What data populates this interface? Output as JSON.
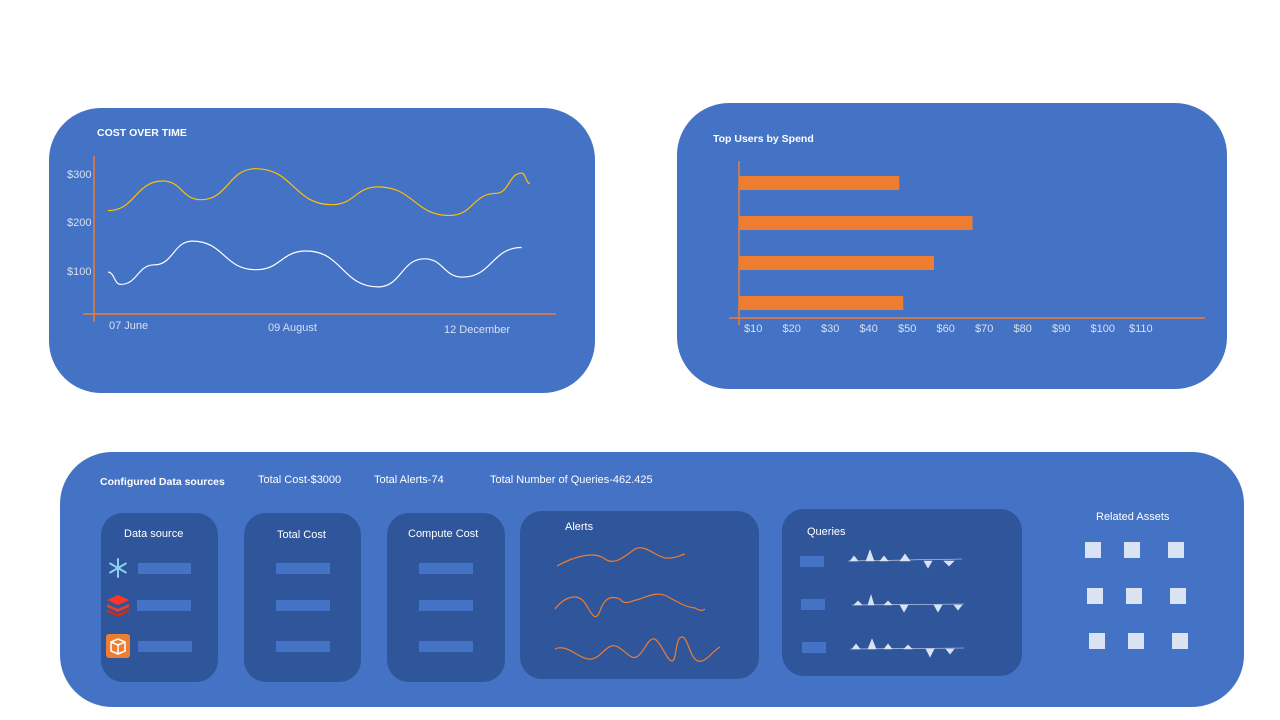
{
  "cost_chart": {
    "title": "COST OVER TIME",
    "y_ticks": [
      "$300",
      "$200",
      "$100"
    ],
    "x_ticks": [
      "07 June",
      "09 August",
      "12 December"
    ]
  },
  "users_chart": {
    "title": "Top Users by Spend",
    "x_ticks": [
      "$10",
      "$20",
      "$30",
      "$40",
      "$50",
      "$60",
      "$70",
      "$80",
      "$90",
      "$100",
      "$110"
    ]
  },
  "chart_data": [
    {
      "type": "line",
      "title": "COST OVER TIME",
      "x": [
        "07 June",
        "09 August",
        "12 December"
      ],
      "ylim": [
        0,
        330
      ],
      "series": [
        {
          "color": "#ffc000",
          "points": [
            [
              0.0,
              210
            ],
            [
              0.13,
              270
            ],
            [
              0.22,
              232
            ],
            [
              0.35,
              295
            ],
            [
              0.53,
              222
            ],
            [
              0.64,
              258
            ],
            [
              0.81,
              200
            ],
            [
              0.92,
              245
            ],
            [
              0.98,
              286
            ],
            [
              1.0,
              265
            ]
          ]
        },
        {
          "color": "#ffffff",
          "points": [
            [
              0.0,
              85
            ],
            [
              0.03,
              60
            ],
            [
              0.11,
              100
            ],
            [
              0.2,
              148
            ],
            [
              0.35,
              90
            ],
            [
              0.47,
              128
            ],
            [
              0.64,
              55
            ],
            [
              0.75,
              112
            ],
            [
              0.84,
              75
            ],
            [
              0.98,
              135
            ]
          ]
        }
      ],
      "grid": false,
      "legend": "none"
    },
    {
      "type": "bar",
      "orientation": "horizontal",
      "title": "Top Users by Spend",
      "xlabel": "",
      "ylabel": "",
      "x_ticks": [
        "$10",
        "$20",
        "$30",
        "$40",
        "$50",
        "$60",
        "$70",
        "$80",
        "$90",
        "$100",
        "$110"
      ],
      "values": [
        48,
        67,
        57,
        49
      ],
      "color": "#ed7d31",
      "grid": false,
      "legend": "none"
    }
  ],
  "summary": {
    "configured_label": "Configured  Data sources",
    "total_cost": "Total Cost-$3000",
    "total_alerts": "Total Alerts-74",
    "total_queries": "Total Number of Queries-462.425"
  },
  "cards": {
    "data_source": "Data source",
    "total_cost": "Total Cost",
    "compute_cost": "Compute Cost",
    "alerts": "Alerts",
    "queries": "Queries",
    "related_assets": "Related Assets"
  },
  "icons": {
    "snowflake": "snowflake-icon",
    "databricks": "databricks-icon",
    "aws": "aws-box-icon"
  },
  "colors": {
    "panel": "#4472c4",
    "card": "#2f559a",
    "accent": "#ed7d31",
    "series_gold": "#ffc000"
  }
}
